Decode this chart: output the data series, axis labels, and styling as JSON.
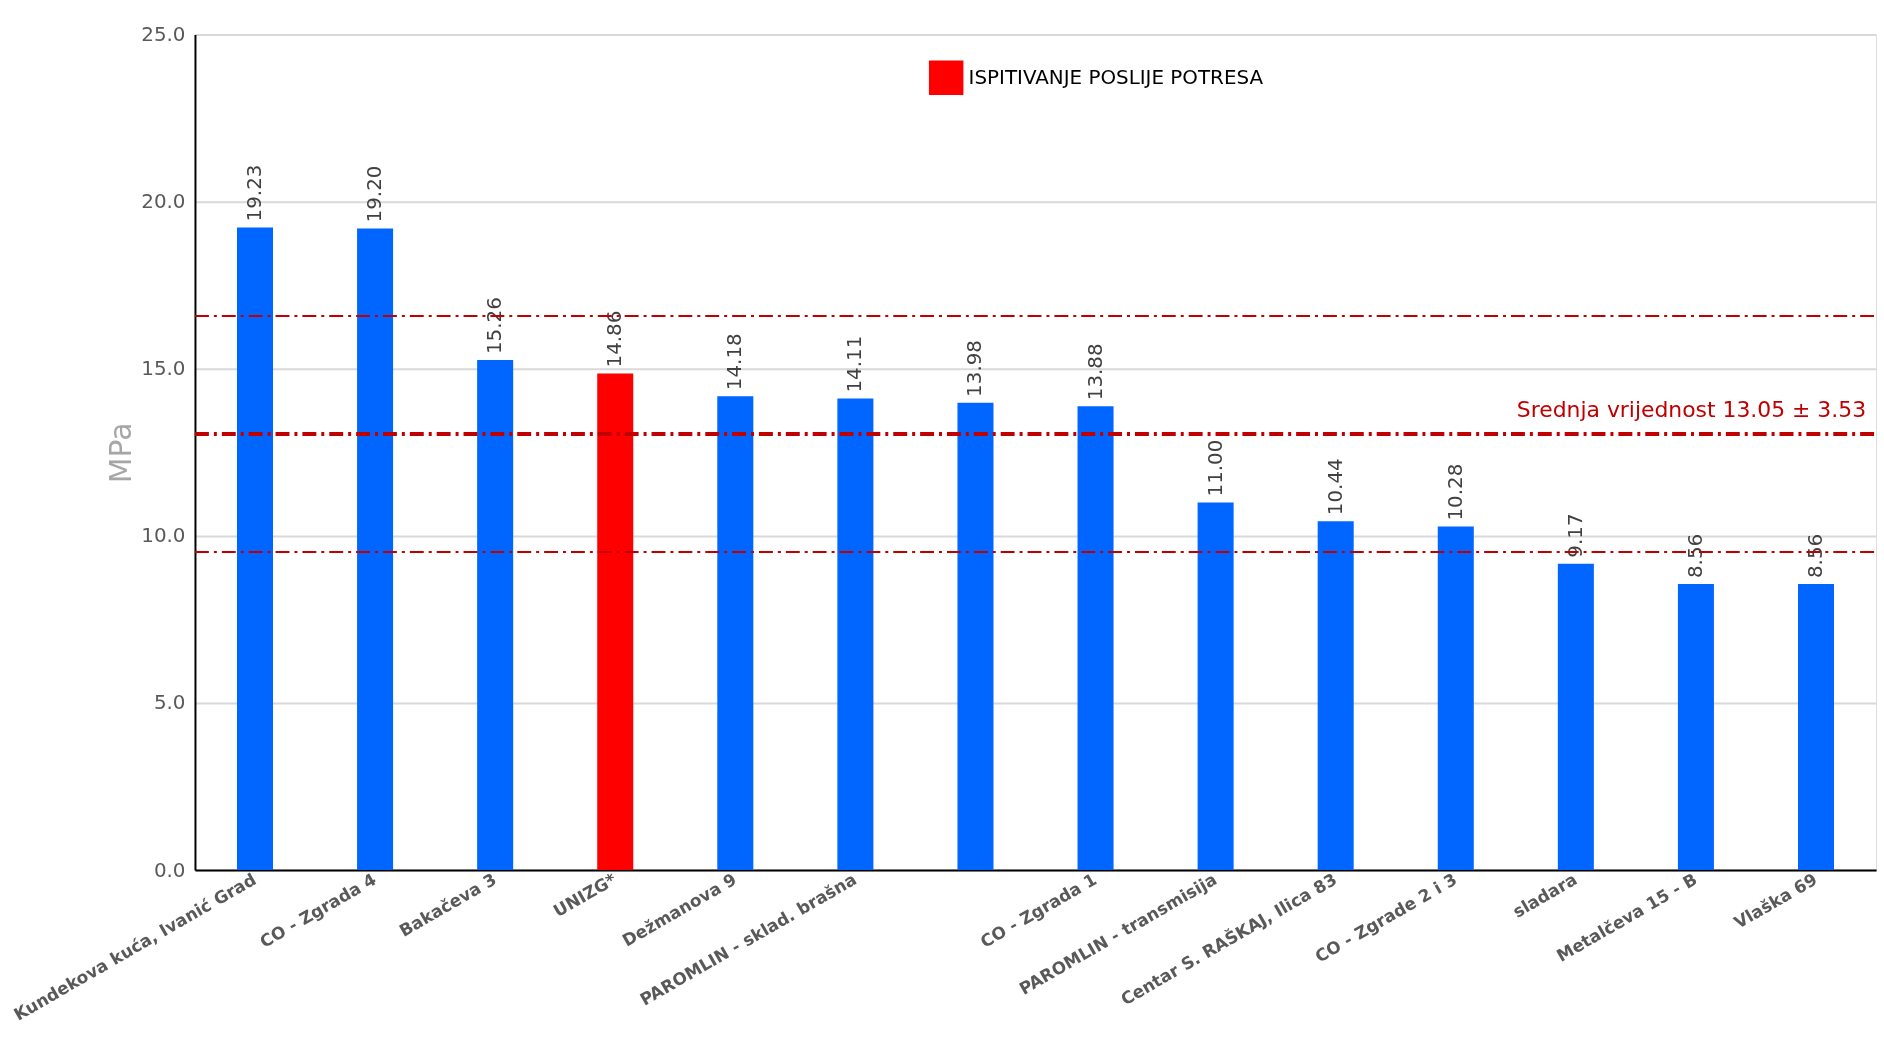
{
  "chart_data": {
    "type": "bar",
    "ylabel": "MPa",
    "categories": [
      "Kundekova kuća, Ivanić Grad",
      "CO - Zgrada 4",
      "Bakačeva 3",
      "UNIZG*",
      "Dežmanova 9",
      "PAROMLIN - sklad. brašna",
      null,
      "CO - Zgrada 1",
      "PAROMLIN - transmisija",
      "Centar S. RAŠKAJ, Ilica 83",
      "CO - Zgrade 2 i 3",
      "sladara",
      "Metalčeva 15 - B",
      "Vlaška 69"
    ],
    "stacked": true,
    "series": [
      {
        "color": "#0066ff",
        "values": [
          19.23,
          19.2,
          15.26,
          null,
          14.18,
          14.11,
          13.98,
          13.88,
          11.0,
          10.44,
          10.28,
          9.17,
          8.56,
          8.56
        ],
        "value_labels": [
          "19.23",
          "19.20",
          "15.26",
          null,
          "14.18",
          "14.11",
          "13.98",
          "13.88",
          "11.00",
          "10.44",
          "10.28",
          "9.17",
          "8.56",
          "8.56"
        ]
      },
      {
        "name": "ISPITIVANJE POSLIJE POTRESA",
        "color": "#ff0000",
        "values": [
          null,
          null,
          null,
          14.86,
          null,
          null,
          null,
          null,
          null,
          null,
          null,
          null,
          null,
          null
        ],
        "value_labels": [
          null,
          null,
          null,
          "14.86",
          null,
          null,
          null,
          null,
          null,
          null,
          null,
          null,
          null,
          null
        ]
      }
    ],
    "ylim": [
      0,
      25
    ],
    "yticks": [
      {
        "value": 0,
        "label": "0.0"
      },
      {
        "value": 5,
        "label": "5.0"
      },
      {
        "value": 10,
        "label": "10.0"
      },
      {
        "value": 15,
        "label": "15.0"
      },
      {
        "value": 20,
        "label": "20.0"
      },
      {
        "value": 25,
        "label": "25.0"
      }
    ],
    "grid": "y",
    "legend": "top right",
    "ref_lines": [
      {
        "axis": "y",
        "value": 16.58,
        "color": "#c00000",
        "line_style": "dashed"
      },
      {
        "axis": "y",
        "value": 13.05,
        "label": "Srednja vrijednost 13.05 ± 3.53",
        "color": "#c00000",
        "line_style": "dashed"
      },
      {
        "axis": "y",
        "value": 9.52,
        "color": "#c00000",
        "line_style": "dashed"
      }
    ]
  }
}
